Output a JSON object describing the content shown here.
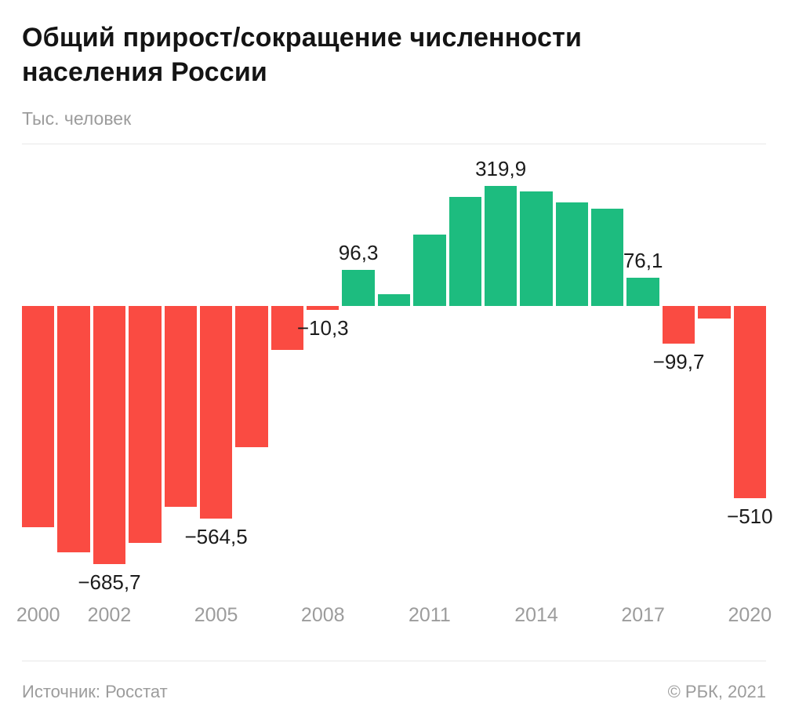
{
  "header": {
    "title": "Общий прирост/сокращение численности населения России",
    "subtitle": "Тыс. человек"
  },
  "footer": {
    "source": "Источник: Росстат",
    "copyright": "© РБК, 2021"
  },
  "colors": {
    "positive": "#1dbc7f",
    "negative": "#fa4b42",
    "value_label": "#1b1b1b",
    "axis_text": "#9c9c9c",
    "divider": "#e8e8e8"
  },
  "chart_data": {
    "type": "bar",
    "title": "Общий прирост/сокращение численности населения России",
    "ylabel": "Тыс. человек",
    "ylim": [
      -780,
      430
    ],
    "grid": false,
    "legend": false,
    "points": [
      {
        "year": 2000,
        "value": -586.5
      },
      {
        "year": 2001,
        "value": -654.3
      },
      {
        "year": 2002,
        "value": -685.7,
        "label": "−685,7",
        "label_position": "below"
      },
      {
        "year": 2003,
        "value": -630.0
      },
      {
        "year": 2004,
        "value": -532.6
      },
      {
        "year": 2005,
        "value": -564.5,
        "label": "−564,5",
        "label_position": "below"
      },
      {
        "year": 2006,
        "value": -373.9
      },
      {
        "year": 2007,
        "value": -115.2
      },
      {
        "year": 2008,
        "value": -10.3,
        "label": "−10,3",
        "label_position": "below"
      },
      {
        "year": 2009,
        "value": 96.3,
        "label": "96,3",
        "label_position": "above"
      },
      {
        "year": 2010,
        "value": 31.9
      },
      {
        "year": 2011,
        "value": 191.0
      },
      {
        "year": 2012,
        "value": 290.7
      },
      {
        "year": 2013,
        "value": 319.9,
        "label": "319,9",
        "label_position": "above"
      },
      {
        "year": 2014,
        "value": 305.5
      },
      {
        "year": 2015,
        "value": 277.4
      },
      {
        "year": 2016,
        "value": 259.7
      },
      {
        "year": 2017,
        "value": 76.1,
        "label": "76,1",
        "label_position": "above"
      },
      {
        "year": 2018,
        "value": -99.7,
        "label": "−99,7",
        "label_position": "below"
      },
      {
        "year": 2019,
        "value": -32.1
      },
      {
        "year": 2020,
        "value": -510,
        "label": "−510",
        "label_position": "below"
      }
    ],
    "x_ticks": [
      {
        "index": 0,
        "label": "2000"
      },
      {
        "index": 2,
        "label": "2002"
      },
      {
        "index": 5,
        "label": "2005"
      },
      {
        "index": 8,
        "label": "2008"
      },
      {
        "index": 11,
        "label": "2011"
      },
      {
        "index": 14,
        "label": "2014"
      },
      {
        "index": 17,
        "label": "2017"
      },
      {
        "index": 20,
        "label": "2020"
      }
    ]
  }
}
